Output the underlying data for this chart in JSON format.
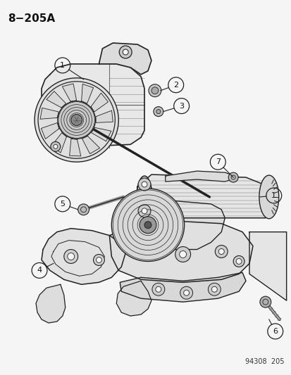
{
  "title": "8−205A",
  "bg_color": "#f5f5f5",
  "fig_width": 4.14,
  "fig_height": 5.33,
  "dpi": 100,
  "watermark": "94308  205",
  "line_color": "#222222",
  "text_color": "#111111",
  "title_fontsize": 11,
  "watermark_fontsize": 7,
  "label_fontsize": 8
}
